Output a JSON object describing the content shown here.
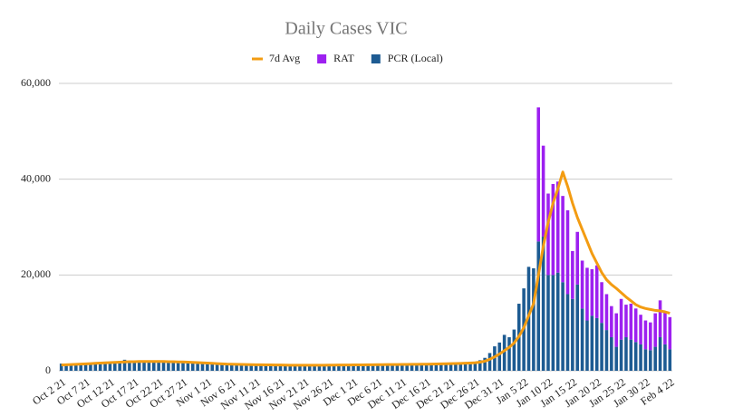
{
  "chart_data": {
    "type": "bar-line",
    "title": "Daily Cases VIC",
    "categories": [
      "Oct 2 21",
      null,
      null,
      null,
      null,
      "Oct 7 21",
      null,
      null,
      null,
      null,
      "Oct 12 21",
      null,
      null,
      null,
      null,
      "Oct 17 21",
      null,
      null,
      null,
      null,
      "Oct 22 21",
      null,
      null,
      null,
      null,
      "Oct 27 21",
      null,
      null,
      null,
      null,
      "Nov 1 21",
      null,
      null,
      null,
      null,
      "Nov 6 21",
      null,
      null,
      null,
      null,
      "Nov 11 21",
      null,
      null,
      null,
      null,
      "Nov 16 21",
      null,
      null,
      null,
      null,
      "Nov 21 21",
      null,
      null,
      null,
      null,
      "Nov 26 21",
      null,
      null,
      null,
      null,
      "Dec 1 21",
      null,
      null,
      null,
      null,
      "Dec 6 21",
      null,
      null,
      null,
      null,
      "Dec 11 21",
      null,
      null,
      null,
      null,
      "Dec 16 21",
      null,
      null,
      null,
      null,
      "Dec 21 21",
      null,
      null,
      null,
      null,
      "Dec 26 21",
      null,
      null,
      null,
      null,
      "Dec 31 21",
      null,
      null,
      null,
      null,
      "Jan 5 22",
      null,
      null,
      null,
      null,
      "Jan 10 22",
      null,
      null,
      null,
      null,
      "Jan 15 22",
      null,
      null,
      null,
      null,
      "Jan 20 22",
      null,
      null,
      null,
      null,
      "Jan 25 22",
      null,
      null,
      null,
      null,
      "Jan 30 22",
      null,
      null,
      null,
      null,
      "Feb 4 22"
    ],
    "series": [
      {
        "name": "7d Avg",
        "kind": "line",
        "color": "#f39c12",
        "values": [
          1200,
          1250,
          1300,
          1350,
          1400,
          1450,
          1500,
          1550,
          1600,
          1650,
          1700,
          1750,
          1800,
          1850,
          1900,
          1900,
          1950,
          1950,
          1950,
          1950,
          1950,
          1950,
          1900,
          1900,
          1850,
          1850,
          1800,
          1750,
          1700,
          1650,
          1600,
          1550,
          1500,
          1450,
          1400,
          1380,
          1350,
          1330,
          1300,
          1280,
          1260,
          1250,
          1230,
          1220,
          1200,
          1200,
          1180,
          1170,
          1160,
          1150,
          1150,
          1150,
          1150,
          1160,
          1170,
          1180,
          1190,
          1200,
          1200,
          1210,
          1220,
          1230,
          1240,
          1250,
          1260,
          1270,
          1280,
          1290,
          1300,
          1310,
          1320,
          1330,
          1340,
          1350,
          1360,
          1380,
          1400,
          1420,
          1440,
          1460,
          1480,
          1510,
          1540,
          1580,
          1620,
          1680,
          1800,
          2000,
          2400,
          2900,
          3500,
          4200,
          4900,
          5800,
          7200,
          9000,
          11500,
          14000,
          20000,
          26000,
          31000,
          35000,
          38000,
          41500,
          38500,
          35000,
          32000,
          29500,
          27000,
          24500,
          22500,
          20500,
          19000,
          18000,
          17200,
          16300,
          15400,
          14600,
          13800,
          13300,
          13000,
          12800,
          12600,
          12500,
          12300,
          12000
        ]
      },
      {
        "name": "RAT",
        "kind": "bar",
        "color": "#9d20f0",
        "values": [
          0,
          0,
          0,
          0,
          0,
          0,
          0,
          0,
          0,
          0,
          0,
          0,
          0,
          0,
          0,
          0,
          0,
          0,
          0,
          0,
          0,
          0,
          0,
          0,
          0,
          0,
          0,
          0,
          0,
          0,
          0,
          0,
          0,
          0,
          0,
          0,
          0,
          0,
          0,
          0,
          0,
          0,
          0,
          0,
          0,
          0,
          0,
          0,
          0,
          0,
          0,
          0,
          0,
          0,
          0,
          0,
          0,
          0,
          0,
          0,
          0,
          0,
          0,
          0,
          0,
          0,
          0,
          0,
          0,
          0,
          0,
          0,
          0,
          0,
          0,
          0,
          0,
          0,
          0,
          0,
          0,
          0,
          0,
          0,
          0,
          0,
          0,
          0,
          0,
          0,
          0,
          0,
          0,
          0,
          0,
          0,
          0,
          0,
          28000,
          19000,
          17000,
          19000,
          19000,
          18000,
          17500,
          10000,
          11000,
          10000,
          11000,
          9700,
          11000,
          8500,
          7500,
          6500,
          7000,
          8500,
          6800,
          7500,
          7000,
          6200,
          6000,
          5800,
          7000,
          7700,
          6800,
          6700
        ]
      },
      {
        "name": "PCR (Local)",
        "kind": "bar",
        "color": "#1d5b92",
        "values": [
          1500,
          1300,
          1400,
          1500,
          1600,
          1700,
          1700,
          1800,
          1800,
          1900,
          1900,
          1950,
          2000,
          2300,
          2000,
          1900,
          1950,
          2000,
          1900,
          1850,
          1900,
          1900,
          1850,
          1800,
          1800,
          1750,
          1700,
          1650,
          1600,
          1550,
          1500,
          1450,
          1400,
          1350,
          1300,
          1300,
          1250,
          1250,
          1250,
          1200,
          1200,
          1200,
          1150,
          1150,
          1150,
          1150,
          1100,
          1100,
          1100,
          1100,
          1100,
          1150,
          1150,
          1150,
          1150,
          1200,
          1200,
          1200,
          1200,
          1200,
          1200,
          1250,
          1250,
          1250,
          1300,
          1250,
          1250,
          1300,
          1300,
          1300,
          1300,
          1300,
          1300,
          1350,
          1350,
          1350,
          1400,
          1400,
          1450,
          1450,
          1500,
          1550,
          1600,
          1700,
          1900,
          1800,
          2200,
          2700,
          3700,
          5100,
          5900,
          7500,
          7000,
          8600,
          14000,
          17200,
          21700,
          21400,
          27000,
          28000,
          20000,
          20000,
          20500,
          18500,
          16000,
          15000,
          18000,
          13000,
          10500,
          11500,
          11000,
          10000,
          8500,
          7000,
          5000,
          6500,
          7000,
          6500,
          6000,
          5500,
          4500,
          4300,
          5000,
          7000,
          5500,
          4500
        ]
      }
    ],
    "ylim": [
      0,
      60000
    ],
    "yticks": [
      0,
      {
        "value": 20000,
        "label": "20,000"
      },
      {
        "value": 40000,
        "label": "40,000"
      },
      {
        "value": 60000,
        "label": "60,000"
      }
    ],
    "grid": true,
    "legend": "top"
  }
}
